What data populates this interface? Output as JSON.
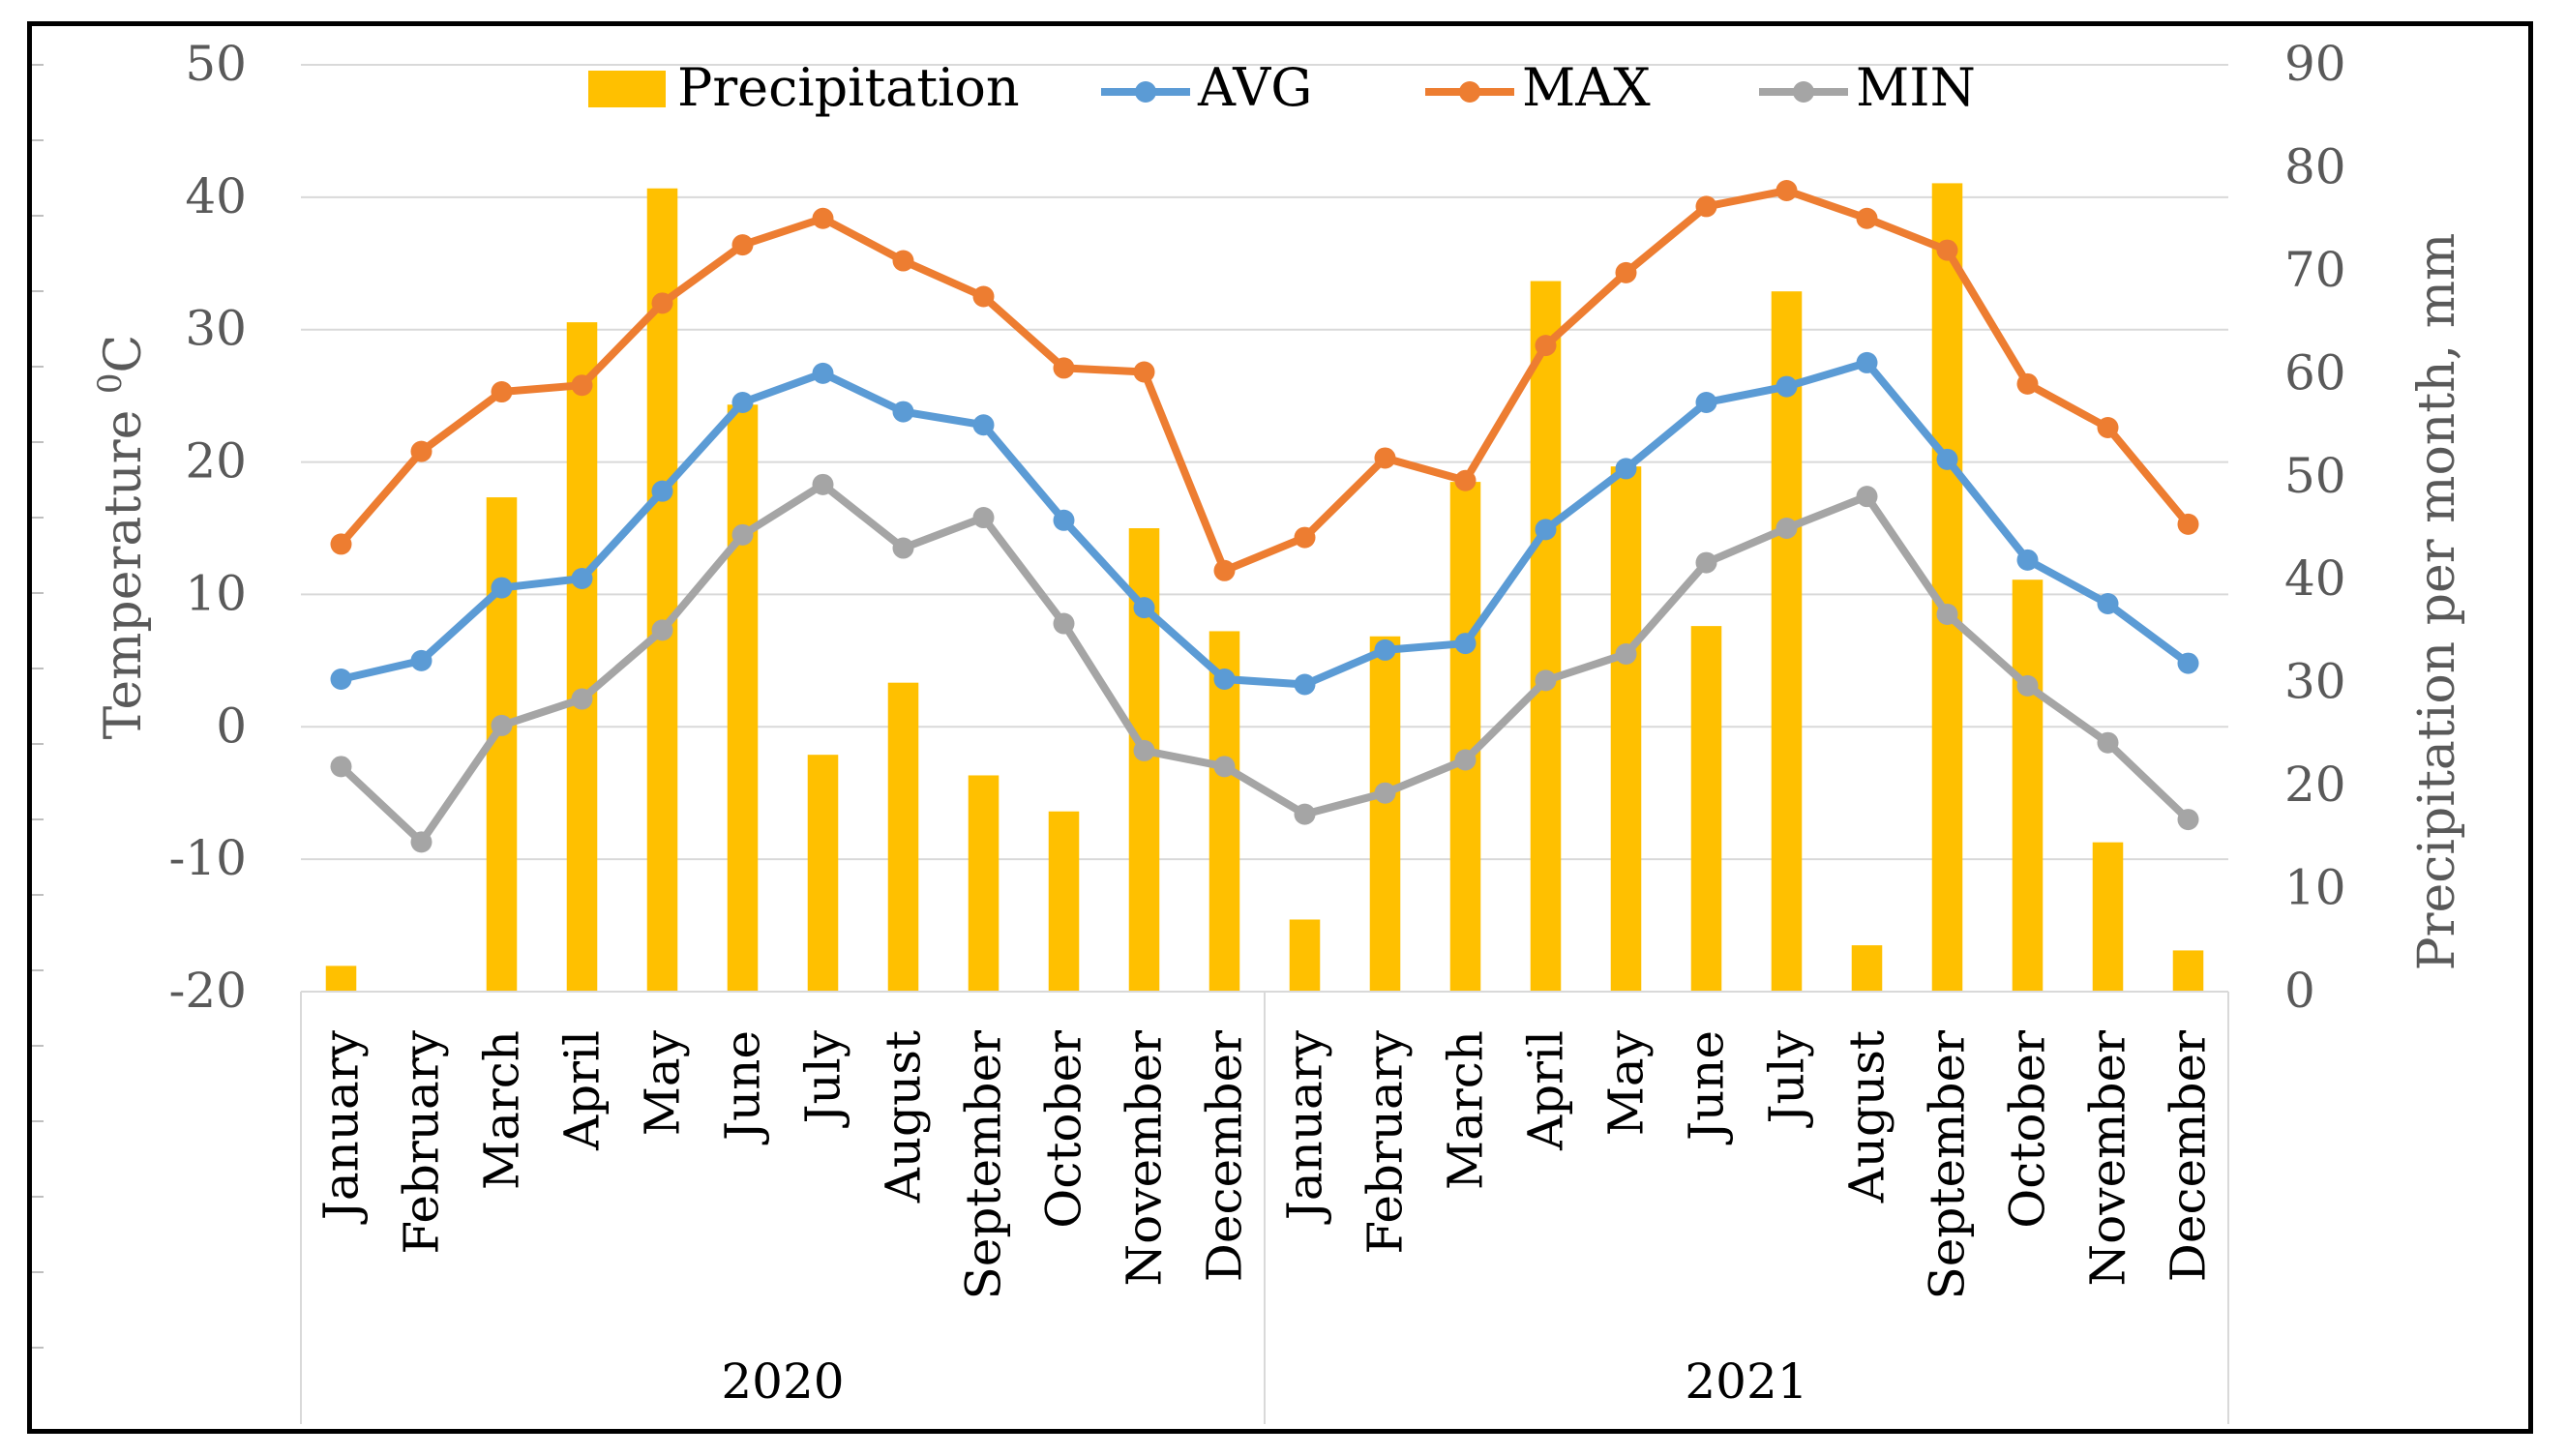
{
  "chart_data": {
    "type": "bar+line",
    "group_labels": [
      "2020",
      "2021"
    ],
    "categories": [
      "January",
      "February",
      "March",
      "April",
      "May",
      "June",
      "July",
      "August",
      "September",
      "October",
      "November",
      "December",
      "January",
      "February",
      "March",
      "April",
      "May",
      "June",
      "July",
      "August",
      "September",
      "October",
      "November",
      "December"
    ],
    "series": [
      {
        "name": "Precipitation",
        "type": "bar",
        "axis": "right",
        "color": "#FFC000",
        "values": [
          2.5,
          0,
          48,
          65,
          78,
          57,
          23,
          30,
          21,
          17.5,
          45,
          35,
          7,
          34.5,
          49.5,
          69,
          51,
          35.5,
          68,
          4.5,
          78.5,
          40,
          14.5,
          4
        ]
      },
      {
        "name": "AVG",
        "type": "line",
        "axis": "left",
        "color": "#5B9BD5",
        "values": [
          3.6,
          5,
          10.5,
          11.2,
          17.8,
          24.5,
          26.7,
          23.8,
          22.8,
          15.6,
          9,
          3.6,
          3.2,
          5.8,
          6.3,
          14.9,
          19.5,
          24.5,
          25.7,
          27.5,
          20.2,
          12.6,
          9.3,
          4.8
        ]
      },
      {
        "name": "MAX",
        "type": "line",
        "axis": "left",
        "color": "#ED7D31",
        "values": [
          13.8,
          20.8,
          25.3,
          25.8,
          32,
          36.4,
          38.4,
          35.2,
          32.5,
          27.1,
          26.8,
          11.8,
          14.3,
          20.3,
          18.6,
          28.8,
          34.3,
          39.3,
          40.5,
          38.4,
          36,
          25.9,
          22.6,
          15.3
        ]
      },
      {
        "name": "MIN",
        "type": "line",
        "axis": "left",
        "color": "#A5A5A5",
        "values": [
          -3,
          -8.7,
          0.1,
          2.1,
          7.3,
          14.5,
          18.3,
          13.5,
          15.8,
          7.8,
          -1.8,
          -3,
          -6.6,
          -5,
          -2.5,
          3.5,
          5.5,
          12.4,
          15,
          17.4,
          8.5,
          3.1,
          -1.2,
          -7
        ]
      }
    ],
    "ylabel": "Temperature  ⁰C",
    "ylabel_base": "Temperature",
    "ylabel_sup": "0",
    "ylabel_unit": "C",
    "ylabel_right": "Precipitation per month, mm",
    "ylim": [
      -20,
      50
    ],
    "ylim_right": [
      0,
      90
    ],
    "yticks": [
      "-20",
      "-10",
      "0",
      "10",
      "20",
      "30",
      "40",
      "50"
    ],
    "yticks_right": [
      "0",
      "10",
      "20",
      "30",
      "40",
      "50",
      "60",
      "70",
      "80",
      "90"
    ],
    "grid": true,
    "legend_position": "top"
  }
}
